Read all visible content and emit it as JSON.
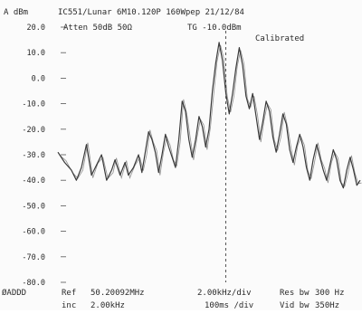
{
  "header": {
    "unit_label": "A dBm",
    "title": "IC551/Lunar 6M10.120P 160Wpep 21/12/84",
    "ref_level": "20.0",
    "atten": "Atten 50dB 50Ω",
    "tg": "TG -10.0dBm",
    "status": "Calibrated"
  },
  "footer": {
    "marker": "ØADDD",
    "ref_label": "Ref",
    "ref_value": "50.20092MHz",
    "inc_label": "inc",
    "inc_value": "2.00kHz",
    "freq_div": "2.00kHz/div",
    "time_div": "100ms /div",
    "res_bw_label": "Res bw",
    "res_bw_value": "300 Hz",
    "vid_bw_label": "Vid bw",
    "vid_bw_value": "350Hz"
  },
  "colors": {
    "trace": "#3a3a3a",
    "background": "#fbfbfb",
    "text": "#2a2a2a"
  },
  "chart_data": {
    "type": "line",
    "title": "IC551/Lunar 6M10.120P 160Wpep 21/12/84",
    "xlabel": "",
    "ylabel": "A dBm",
    "ylim": [
      -80,
      20
    ],
    "xlim": [
      -10,
      8
    ],
    "grid": false,
    "y_ticks": [
      "20.0",
      "10.0",
      "0.0",
      "-10.0",
      "-20.0",
      "-30.0",
      "-40.0",
      "-50.0",
      "-60.0",
      "-70.0",
      "-80.0"
    ],
    "center_marker_x": 0,
    "series": [
      {
        "x": [
          -10,
          -9.6,
          -9.2,
          -8.9,
          -8.6,
          -8.3,
          -8.0,
          -7.7,
          -7.4,
          -7.1,
          -6.8,
          -6.6,
          -6.3,
          -6.0,
          -5.8,
          -5.5,
          -5.2,
          -5.0,
          -4.8,
          -4.6,
          -4.4,
          -4.2,
          -4.0,
          -3.8,
          -3.6,
          -3.4,
          -3.2,
          -3.0,
          -2.8,
          -2.6,
          -2.4,
          -2.2,
          -2.0,
          -1.8,
          -1.6,
          -1.4,
          -1.2,
          -1.0,
          -0.8,
          -0.6,
          -0.4,
          -0.2,
          0.0,
          0.2,
          0.4,
          0.6,
          0.8,
          1.0,
          1.2,
          1.4,
          1.6,
          1.8,
          2.0,
          2.2,
          2.4,
          2.6,
          2.8,
          3.0,
          3.2,
          3.4,
          3.6,
          3.8,
          4.0,
          4.2,
          4.4,
          4.6,
          4.8,
          5.0,
          5.2,
          5.4,
          5.6,
          5.8,
          6.0,
          6.2,
          6.4,
          6.6,
          6.8,
          7.0,
          7.2,
          7.4,
          7.6,
          7.8,
          8.0
        ],
        "y": [
          -29,
          -33,
          -36,
          -40,
          -35,
          -26,
          -38,
          -34,
          -30,
          -40,
          -36,
          -32,
          -38,
          -33,
          -38,
          -35,
          -30,
          -37,
          -29,
          -21,
          -24,
          -29,
          -37,
          -30,
          -22,
          -27,
          -31,
          -35,
          -24,
          -9,
          -13,
          -24,
          -31,
          -24,
          -15,
          -19,
          -27,
          -20,
          -5,
          6,
          14,
          7,
          -6,
          -14,
          -6,
          4,
          12,
          5,
          -7,
          -12,
          -6,
          -15,
          -24,
          -17,
          -9,
          -13,
          -23,
          -29,
          -22,
          -14,
          -18,
          -28,
          -33,
          -27,
          -22,
          -27,
          -35,
          -40,
          -32,
          -26,
          -31,
          -36,
          -40,
          -34,
          -28,
          -32,
          -40,
          -43,
          -36,
          -31,
          -36,
          -42,
          -40
        ]
      }
    ]
  }
}
